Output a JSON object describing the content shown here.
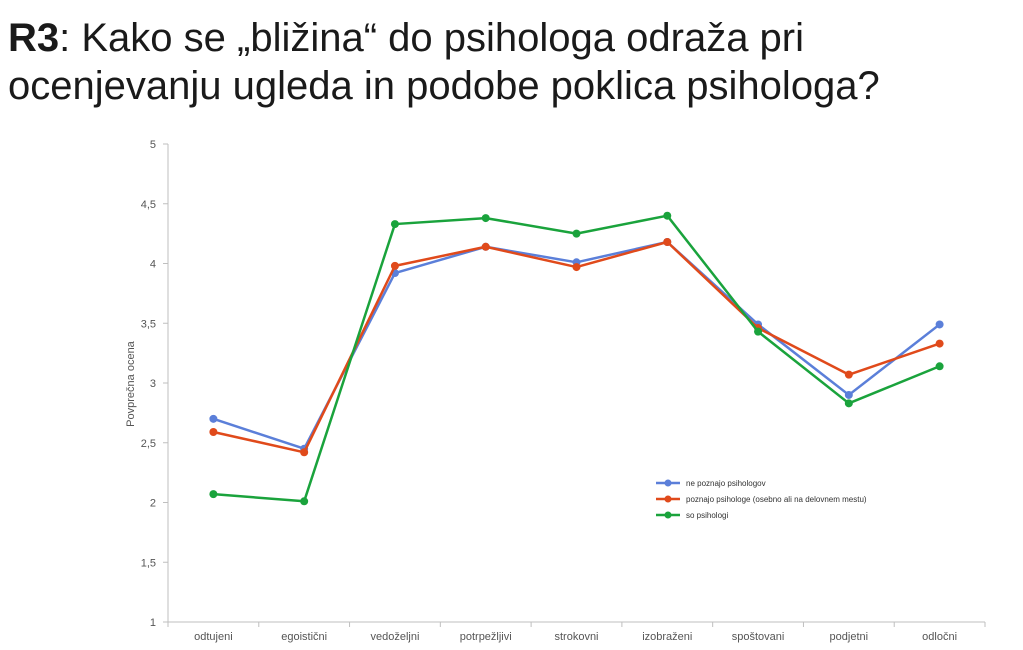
{
  "slide": {
    "title_label": "R3",
    "title_text": ": Kako se „bližina“ do psihologa odraža pri ocenjevanju ugleda in podobe poklica psihologa?"
  },
  "chart_data": {
    "type": "line",
    "title": "",
    "xlabel": "",
    "ylabel": "Povprečna ocena",
    "ylim": [
      1,
      5
    ],
    "yticks": [
      "1",
      "1,5",
      "2",
      "2,5",
      "3",
      "3,5",
      "4",
      "4,5",
      "5"
    ],
    "grid": false,
    "legend_position": "right",
    "categories": [
      "odtujeni",
      "egoistični",
      "vedoželjni",
      "potrpežljivi",
      "strokovni",
      "izobraženi",
      "spoštovani",
      "podjetni",
      "odločni"
    ],
    "series": [
      {
        "name": "ne poznajo psihologov",
        "color": "#5b7fd9",
        "values": [
          2.7,
          2.45,
          3.92,
          4.14,
          4.01,
          4.18,
          3.49,
          2.9,
          3.49
        ]
      },
      {
        "name": "poznajo psihologe (osebno ali na delovnem mestu)",
        "color": "#e04a1b",
        "values": [
          2.59,
          2.42,
          3.98,
          4.14,
          3.97,
          4.18,
          3.46,
          3.07,
          3.33
        ]
      },
      {
        "name": "so psihologi",
        "color": "#1aa33c",
        "values": [
          2.07,
          2.01,
          4.33,
          4.38,
          4.25,
          4.4,
          3.43,
          2.83,
          3.14
        ]
      }
    ]
  }
}
